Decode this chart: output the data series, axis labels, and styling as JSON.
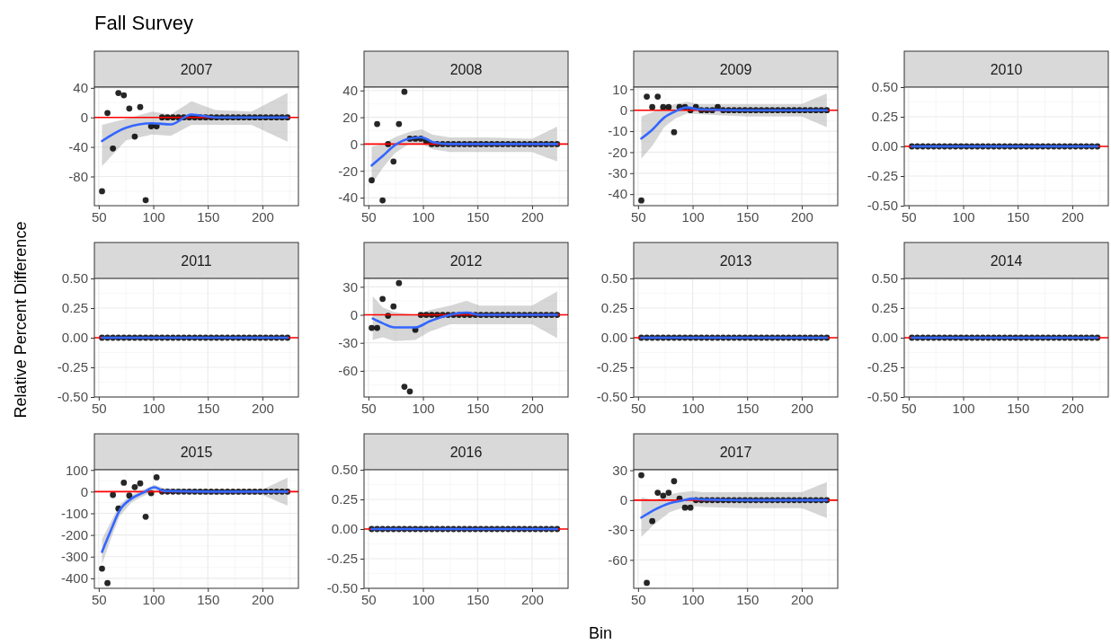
{
  "chart_data": [
    {
      "type": "scatter",
      "title": "2007",
      "annotations": [
        "Fall Survey"
      ],
      "x": [
        53,
        58,
        63,
        68,
        73,
        78,
        83,
        88,
        93,
        98,
        103,
        108,
        113,
        118,
        123,
        128,
        133,
        138,
        143,
        148,
        153,
        158,
        163,
        168,
        173,
        178,
        183,
        188,
        193,
        198,
        203,
        208,
        213,
        218,
        223
      ],
      "xlim": [
        46,
        233
      ],
      "xticks": [
        50,
        100,
        150,
        200
      ],
      "ylim": [
        -119.5,
        41
      ],
      "yticks": [
        -80,
        -40,
        0,
        40
      ],
      "grid": true,
      "ref_lines": [
        {
          "axis": "y",
          "value": 0,
          "color": "#ff0000"
        }
      ],
      "series": [
        {
          "type": "scatter",
          "marker": "circle",
          "color": "#000000",
          "values": [
            -100,
            6,
            -42,
            33,
            30,
            12,
            -26,
            14,
            -112,
            -12,
            -12,
            0,
            0,
            0,
            0,
            0,
            0,
            0,
            0,
            0,
            0,
            0,
            0,
            0,
            0,
            0,
            0,
            0,
            0,
            0,
            0,
            0,
            0,
            0,
            0
          ]
        },
        {
          "type": "line",
          "color": "#3366ff",
          "x": [
            53,
            75,
            99,
            116,
            135,
            157,
            190,
            223
          ],
          "values": [
            -32,
            -14,
            -8,
            -9.5,
            4,
            0,
            0,
            0
          ],
          "lower": [
            -66,
            -31,
            -23,
            -25,
            -10,
            -10,
            -10,
            -33
          ],
          "upper": [
            -10,
            -2,
            8,
            4,
            22,
            10,
            8,
            33
          ]
        }
      ]
    },
    {
      "type": "scatter",
      "title": "2008",
      "x": [
        53,
        58,
        63,
        68,
        73,
        78,
        83,
        88,
        93,
        98,
        103,
        108,
        113,
        118,
        123,
        128,
        133,
        138,
        143,
        148,
        153,
        158,
        163,
        168,
        173,
        178,
        183,
        188,
        193,
        198,
        203,
        208,
        213,
        218,
        223
      ],
      "xlim": [
        46,
        233
      ],
      "xticks": [
        50,
        100,
        150,
        200
      ],
      "ylim": [
        -46,
        42.5
      ],
      "yticks": [
        -40,
        -20,
        0,
        20,
        40
      ],
      "grid": true,
      "ref_lines": [
        {
          "axis": "y",
          "value": 0,
          "color": "#ff0000"
        }
      ],
      "series": [
        {
          "type": "scatter",
          "marker": "circle",
          "color": "#000000",
          "values": [
            -27,
            15,
            -42,
            0,
            -13,
            15,
            39,
            4,
            4,
            4,
            2,
            0,
            0,
            0,
            0,
            0,
            0,
            0,
            0,
            0,
            0,
            0,
            0,
            0,
            0,
            0,
            0,
            0,
            0,
            0,
            0,
            0,
            0,
            0,
            0
          ]
        },
        {
          "type": "line",
          "color": "#3366ff",
          "x": [
            53,
            63,
            74,
            87,
            99,
            109,
            125,
            160,
            200,
            223
          ],
          "values": [
            -16,
            -9,
            -1,
            4,
            5,
            1.5,
            0,
            0,
            0,
            0
          ],
          "lower": [
            -30,
            -18,
            -7,
            0,
            0,
            -4,
            -6,
            -6,
            -6,
            -13
          ],
          "upper": [
            -2,
            0,
            5,
            9,
            11,
            7,
            5,
            5,
            4,
            13
          ]
        }
      ]
    },
    {
      "type": "scatter",
      "title": "2009",
      "x": [
        53,
        58,
        63,
        68,
        73,
        78,
        83,
        88,
        93,
        98,
        103,
        108,
        113,
        118,
        123,
        128,
        133,
        138,
        143,
        148,
        153,
        158,
        163,
        168,
        173,
        178,
        183,
        188,
        193,
        198,
        203,
        208,
        213,
        218,
        223
      ],
      "xlim": [
        46,
        233
      ],
      "xticks": [
        50,
        100,
        150,
        200
      ],
      "ylim": [
        -45.5,
        11
      ],
      "yticks": [
        -40,
        -30,
        -20,
        -10,
        0,
        10
      ],
      "grid": true,
      "ref_lines": [
        {
          "axis": "y",
          "value": 0,
          "color": "#ff0000"
        }
      ],
      "series": [
        {
          "type": "scatter",
          "marker": "circle",
          "color": "#000000",
          "values": [
            -43,
            6.5,
            1.5,
            6.5,
            1.5,
            1.5,
            -10.5,
            1.5,
            1.5,
            0,
            1.5,
            0,
            0,
            0,
            1.5,
            0,
            0,
            0,
            0,
            0,
            0,
            0,
            0,
            0,
            0,
            0,
            0,
            0,
            0,
            0,
            0,
            0,
            0,
            0,
            0
          ]
        },
        {
          "type": "line",
          "color": "#3366ff",
          "x": [
            53,
            63,
            74,
            84,
            95,
            106,
            150,
            200,
            223
          ],
          "values": [
            -13.5,
            -9.3,
            -3.5,
            -0.6,
            1.3,
            0.4,
            0,
            0,
            0
          ],
          "lower": [
            -23,
            -17,
            -8,
            -4,
            -1.5,
            -2,
            -3,
            -3,
            -8
          ],
          "upper": [
            -3,
            -1,
            1.5,
            3,
            4,
            3,
            3,
            3,
            8
          ]
        }
      ]
    },
    {
      "type": "scatter",
      "title": "2010",
      "x": [
        53,
        58,
        63,
        68,
        73,
        78,
        83,
        88,
        93,
        98,
        103,
        108,
        113,
        118,
        123,
        128,
        133,
        138,
        143,
        148,
        153,
        158,
        163,
        168,
        173,
        178,
        183,
        188,
        193,
        198,
        203,
        208,
        213,
        218,
        223
      ],
      "xlim": [
        46,
        233
      ],
      "xticks": [
        50,
        100,
        150,
        200
      ],
      "ylim": [
        -0.5,
        0.5
      ],
      "yticks": [
        {
          "value": -0.5,
          "label": "-0.50"
        },
        {
          "value": -0.25,
          "label": "-0.25"
        },
        {
          "value": 0,
          "label": "0.00"
        },
        {
          "value": 0.25,
          "label": "0.25"
        },
        {
          "value": 0.5,
          "label": "0.50"
        }
      ],
      "grid": true,
      "ref_lines": [
        {
          "axis": "y",
          "value": 0,
          "color": "#ff0000"
        }
      ],
      "series": [
        {
          "type": "scatter",
          "marker": "circle",
          "color": "#000000",
          "values": [
            0,
            0,
            0,
            0,
            0,
            0,
            0,
            0,
            0,
            0,
            0,
            0,
            0,
            0,
            0,
            0,
            0,
            0,
            0,
            0,
            0,
            0,
            0,
            0,
            0,
            0,
            0,
            0,
            0,
            0,
            0,
            0,
            0,
            0,
            0
          ]
        },
        {
          "type": "line",
          "color": "#3366ff",
          "x": [
            53,
            223
          ],
          "values": [
            0,
            0
          ]
        }
      ]
    },
    {
      "type": "scatter",
      "title": "2011",
      "ylabel": "Relative Percent Difference",
      "x": [
        53,
        58,
        63,
        68,
        73,
        78,
        83,
        88,
        93,
        98,
        103,
        108,
        113,
        118,
        123,
        128,
        133,
        138,
        143,
        148,
        153,
        158,
        163,
        168,
        173,
        178,
        183,
        188,
        193,
        198,
        203,
        208,
        213,
        218,
        223
      ],
      "xlim": [
        46,
        233
      ],
      "xticks": [
        50,
        100,
        150,
        200
      ],
      "ylim": [
        -0.5,
        0.5
      ],
      "yticks": [
        {
          "value": -0.5,
          "label": "-0.50"
        },
        {
          "value": -0.25,
          "label": "-0.25"
        },
        {
          "value": 0,
          "label": "0.00"
        },
        {
          "value": 0.25,
          "label": "0.25"
        },
        {
          "value": 0.5,
          "label": "0.50"
        }
      ],
      "grid": true,
      "ref_lines": [
        {
          "axis": "y",
          "value": 0,
          "color": "#ff0000"
        }
      ],
      "series": [
        {
          "type": "scatter",
          "marker": "circle",
          "color": "#000000",
          "values": [
            0,
            0,
            0,
            0,
            0,
            0,
            0,
            0,
            0,
            0,
            0,
            0,
            0,
            0,
            0,
            0,
            0,
            0,
            0,
            0,
            0,
            0,
            0,
            0,
            0,
            0,
            0,
            0,
            0,
            0,
            0,
            0,
            0,
            0,
            0
          ]
        },
        {
          "type": "line",
          "color": "#3366ff",
          "x": [
            53,
            223
          ],
          "values": [
            0,
            0
          ]
        }
      ]
    },
    {
      "type": "scatter",
      "title": "2012",
      "x": [
        53,
        58,
        63,
        68,
        73,
        78,
        83,
        88,
        93,
        98,
        103,
        108,
        113,
        118,
        123,
        128,
        133,
        138,
        143,
        148,
        153,
        158,
        163,
        168,
        173,
        178,
        183,
        188,
        193,
        198,
        203,
        208,
        213,
        218,
        223
      ],
      "xlim": [
        46,
        233
      ],
      "xticks": [
        50,
        100,
        150,
        200
      ],
      "ylim": [
        -88,
        39
      ],
      "yticks": [
        -60,
        -30,
        0,
        30
      ],
      "grid": true,
      "ref_lines": [
        {
          "axis": "y",
          "value": 0,
          "color": "#ff0000"
        }
      ],
      "series": [
        {
          "type": "scatter",
          "marker": "circle",
          "color": "#000000",
          "values": [
            -14,
            -14,
            17,
            -1,
            9,
            34,
            -77,
            -82,
            -16,
            0,
            0,
            0,
            0,
            0,
            0,
            0,
            0,
            0,
            0,
            0,
            0,
            0,
            0,
            0,
            0,
            0,
            0,
            0,
            0,
            0,
            0,
            0,
            0,
            0,
            0
          ]
        },
        {
          "type": "line",
          "color": "#3366ff",
          "x": [
            54,
            63,
            74,
            93,
            106,
            125,
            140,
            152,
            200,
            223
          ],
          "values": [
            -4,
            -9,
            -13.5,
            -13.5,
            -7,
            0,
            2.5,
            0,
            0,
            0
          ],
          "lower": [
            -27,
            -24,
            -28,
            -27,
            -18,
            -10,
            -10,
            -10,
            -10,
            -25
          ],
          "upper": [
            20,
            8,
            3,
            0,
            5,
            10,
            15,
            10,
            10,
            25
          ]
        }
      ]
    },
    {
      "type": "scatter",
      "title": "2013",
      "x": [
        53,
        58,
        63,
        68,
        73,
        78,
        83,
        88,
        93,
        98,
        103,
        108,
        113,
        118,
        123,
        128,
        133,
        138,
        143,
        148,
        153,
        158,
        163,
        168,
        173,
        178,
        183,
        188,
        193,
        198,
        203,
        208,
        213,
        218,
        223
      ],
      "xlim": [
        46,
        233
      ],
      "xticks": [
        50,
        100,
        150,
        200
      ],
      "ylim": [
        -0.5,
        0.5
      ],
      "yticks": [
        {
          "value": -0.5,
          "label": "-0.50"
        },
        {
          "value": -0.25,
          "label": "-0.25"
        },
        {
          "value": 0,
          "label": "0.00"
        },
        {
          "value": 0.25,
          "label": "0.25"
        },
        {
          "value": 0.5,
          "label": "0.50"
        }
      ],
      "grid": true,
      "ref_lines": [
        {
          "axis": "y",
          "value": 0,
          "color": "#ff0000"
        }
      ],
      "series": [
        {
          "type": "scatter",
          "marker": "circle",
          "color": "#000000",
          "values": [
            0,
            0,
            0,
            0,
            0,
            0,
            0,
            0,
            0,
            0,
            0,
            0,
            0,
            0,
            0,
            0,
            0,
            0,
            0,
            0,
            0,
            0,
            0,
            0,
            0,
            0,
            0,
            0,
            0,
            0,
            0,
            0,
            0,
            0,
            0
          ]
        },
        {
          "type": "line",
          "color": "#3366ff",
          "x": [
            53,
            223
          ],
          "values": [
            0,
            0
          ]
        }
      ]
    },
    {
      "type": "scatter",
      "title": "2014",
      "x": [
        53,
        58,
        63,
        68,
        73,
        78,
        83,
        88,
        93,
        98,
        103,
        108,
        113,
        118,
        123,
        128,
        133,
        138,
        143,
        148,
        153,
        158,
        163,
        168,
        173,
        178,
        183,
        188,
        193,
        198,
        203,
        208,
        213,
        218,
        223
      ],
      "xlim": [
        46,
        233
      ],
      "xticks": [
        50,
        100,
        150,
        200
      ],
      "ylim": [
        -0.5,
        0.5
      ],
      "yticks": [
        {
          "value": -0.5,
          "label": "-0.50"
        },
        {
          "value": -0.25,
          "label": "-0.25"
        },
        {
          "value": 0,
          "label": "0.00"
        },
        {
          "value": 0.25,
          "label": "0.25"
        },
        {
          "value": 0.5,
          "label": "0.50"
        }
      ],
      "grid": true,
      "ref_lines": [
        {
          "axis": "y",
          "value": 0,
          "color": "#ff0000"
        }
      ],
      "series": [
        {
          "type": "scatter",
          "marker": "circle",
          "color": "#000000",
          "values": [
            0,
            0,
            0,
            0,
            0,
            0,
            0,
            0,
            0,
            0,
            0,
            0,
            0,
            0,
            0,
            0,
            0,
            0,
            0,
            0,
            0,
            0,
            0,
            0,
            0,
            0,
            0,
            0,
            0,
            0,
            0,
            0,
            0,
            0,
            0
          ]
        },
        {
          "type": "line",
          "color": "#3366ff",
          "x": [
            53,
            223
          ],
          "values": [
            0,
            0
          ]
        }
      ]
    },
    {
      "type": "scatter",
      "title": "2015",
      "x": [
        53,
        58,
        63,
        68,
        73,
        78,
        83,
        88,
        93,
        98,
        103,
        108,
        113,
        118,
        123,
        128,
        133,
        138,
        143,
        148,
        153,
        158,
        163,
        168,
        173,
        178,
        183,
        188,
        193,
        198,
        203,
        208,
        213,
        218,
        223
      ],
      "xlim": [
        46,
        233
      ],
      "xticks": [
        50,
        100,
        150,
        200
      ],
      "ylim": [
        -446,
        101
      ],
      "yticks": [
        -400,
        -300,
        -200,
        -100,
        0,
        100
      ],
      "grid": true,
      "ref_lines": [
        {
          "axis": "y",
          "value": 0,
          "color": "#ff0000"
        }
      ],
      "series": [
        {
          "type": "scatter",
          "marker": "circle",
          "color": "#000000",
          "values": [
            -355,
            -422,
            -15,
            -78,
            41,
            -18,
            21,
            38,
            -116,
            -7,
            66,
            0,
            0,
            0,
            0,
            0,
            0,
            0,
            0,
            0,
            0,
            0,
            0,
            0,
            0,
            0,
            0,
            0,
            0,
            0,
            0,
            0,
            0,
            0,
            0
          ]
        },
        {
          "type": "line",
          "color": "#3366ff",
          "x": [
            53,
            61,
            69,
            80,
            91,
            101,
            110,
            150,
            200,
            223
          ],
          "values": [
            -278,
            -180,
            -88,
            -32,
            -4,
            20,
            3,
            0,
            0,
            0
          ],
          "lower": [
            -335,
            -220,
            -115,
            -50,
            -20,
            5,
            -10,
            -15,
            -15,
            -65
          ],
          "upper": [
            -220,
            -140,
            -60,
            -15,
            10,
            32,
            15,
            10,
            10,
            65
          ]
        }
      ]
    },
    {
      "type": "scatter",
      "title": "2016",
      "xlabel": "Bin",
      "x": [
        53,
        58,
        63,
        68,
        73,
        78,
        83,
        88,
        93,
        98,
        103,
        108,
        113,
        118,
        123,
        128,
        133,
        138,
        143,
        148,
        153,
        158,
        163,
        168,
        173,
        178,
        183,
        188,
        193,
        198,
        203,
        208,
        213,
        218,
        223
      ],
      "xlim": [
        46,
        233
      ],
      "xticks": [
        50,
        100,
        150,
        200
      ],
      "ylim": [
        -0.5,
        0.5
      ],
      "yticks": [
        {
          "value": -0.5,
          "label": "-0.50"
        },
        {
          "value": -0.25,
          "label": "-0.25"
        },
        {
          "value": 0,
          "label": "0.00"
        },
        {
          "value": 0.25,
          "label": "0.25"
        },
        {
          "value": 0.5,
          "label": "0.50"
        }
      ],
      "grid": true,
      "ref_lines": [
        {
          "axis": "y",
          "value": 0,
          "color": "#ff0000"
        }
      ],
      "series": [
        {
          "type": "scatter",
          "marker": "circle",
          "color": "#000000",
          "values": [
            0,
            0,
            0,
            0,
            0,
            0,
            0,
            0,
            0,
            0,
            0,
            0,
            0,
            0,
            0,
            0,
            0,
            0,
            0,
            0,
            0,
            0,
            0,
            0,
            0,
            0,
            0,
            0,
            0,
            0,
            0,
            0,
            0,
            0,
            0
          ]
        },
        {
          "type": "line",
          "color": "#3366ff",
          "x": [
            53,
            223
          ],
          "values": [
            0,
            0
          ]
        }
      ]
    },
    {
      "type": "scatter",
      "title": "2017",
      "x": [
        53,
        58,
        63,
        68,
        73,
        78,
        83,
        88,
        93,
        98,
        103,
        108,
        113,
        118,
        123,
        128,
        133,
        138,
        143,
        148,
        153,
        158,
        163,
        168,
        173,
        178,
        183,
        188,
        193,
        198,
        203,
        208,
        213,
        218,
        223
      ],
      "xlim": [
        46,
        233
      ],
      "xticks": [
        50,
        100,
        150,
        200
      ],
      "ylim": [
        -88.5,
        30.5
      ],
      "yticks": [
        -60,
        -30,
        0,
        30
      ],
      "grid": true,
      "ref_lines": [
        {
          "axis": "y",
          "value": 0,
          "color": "#ff0000"
        }
      ],
      "series": [
        {
          "type": "scatter",
          "marker": "circle",
          "color": "#000000",
          "values": [
            25,
            -83,
            -21,
            7.5,
            4.5,
            7.5,
            19,
            1.5,
            -7.5,
            -7.5,
            0,
            0,
            0,
            0,
            0,
            0,
            0,
            0,
            0,
            0,
            0,
            0,
            0,
            0,
            0,
            0,
            0,
            0,
            0,
            0,
            0,
            0,
            0,
            0,
            0
          ]
        },
        {
          "type": "line",
          "color": "#3366ff",
          "x": [
            53,
            65,
            79,
            90,
            100,
            109,
            150,
            200,
            223
          ],
          "values": [
            -17.5,
            -9.7,
            -3,
            -0.6,
            1.5,
            0.6,
            0,
            0,
            0
          ],
          "lower": [
            -37,
            -24,
            -12,
            -8,
            -6,
            -7,
            -8,
            -8,
            -18
          ],
          "upper": [
            3,
            0,
            6,
            8,
            9,
            8,
            8,
            8,
            18
          ]
        }
      ]
    }
  ]
}
